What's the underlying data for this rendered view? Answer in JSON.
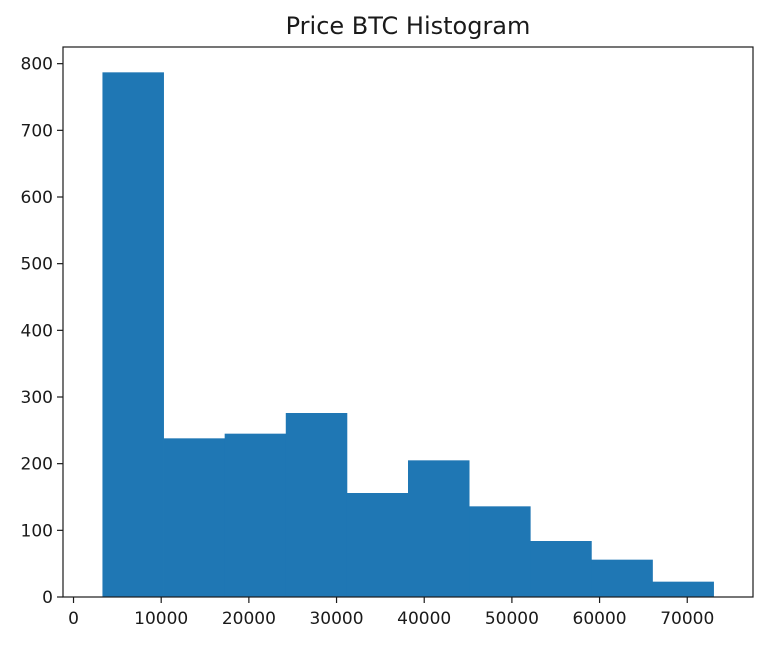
{
  "chart_data": {
    "type": "bar",
    "subtype": "histogram",
    "title": "Price BTC Histogram",
    "xlabel": "",
    "ylabel": "",
    "bin_edges": [
      3300,
      10270,
      17240,
      24210,
      31180,
      38150,
      45120,
      52090,
      59060,
      66030,
      73000
    ],
    "values": [
      787,
      238,
      245,
      276,
      156,
      205,
      136,
      84,
      56,
      23
    ],
    "xlim": [
      -1200,
      77500
    ],
    "ylim": [
      0,
      825
    ],
    "x_ticks": [
      0,
      10000,
      20000,
      30000,
      40000,
      50000,
      60000,
      70000
    ],
    "y_ticks": [
      0,
      100,
      200,
      300,
      400,
      500,
      600,
      700,
      800
    ],
    "bar_color": "#1f77b4",
    "grid": false
  }
}
